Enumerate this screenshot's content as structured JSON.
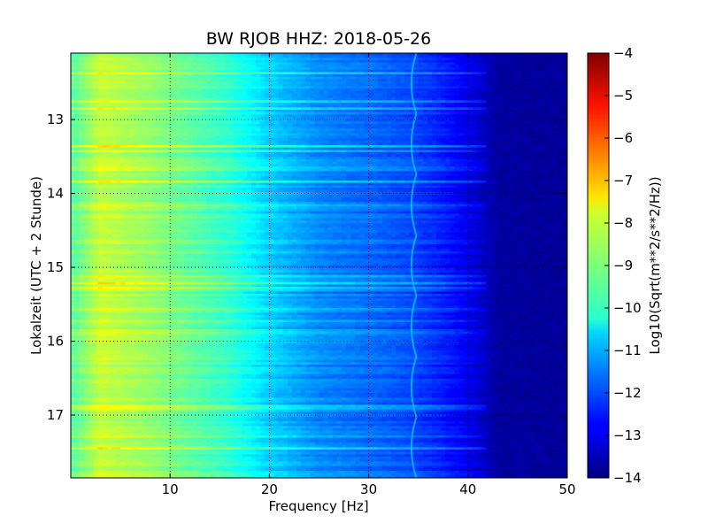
{
  "chart_data": {
    "type": "heatmap",
    "title": "BW RJOB HHZ: 2018-05-26",
    "xlabel": "Frequency [Hz]",
    "ylabel": "Lokalzeit (UTC + 2 Stunde)",
    "xlim": [
      0,
      50
    ],
    "ylim": [
      12.1,
      17.85
    ],
    "x_ticks": [
      {
        "value": 10,
        "label": "10"
      },
      {
        "value": 20,
        "label": "20"
      },
      {
        "value": 30,
        "label": "30"
      },
      {
        "value": 40,
        "label": "40"
      },
      {
        "value": 50,
        "label": "50"
      }
    ],
    "y_ticks": [
      {
        "value": 13,
        "label": "13"
      },
      {
        "value": 14,
        "label": "14"
      },
      {
        "value": 15,
        "label": "15"
      },
      {
        "value": 16,
        "label": "16"
      },
      {
        "value": 17,
        "label": "17"
      }
    ],
    "y_inverted": true,
    "grid": true,
    "colorbar": {
      "label": "Log10(Sqrt(m**2/s**2/Hz))",
      "min": -14,
      "max": -4,
      "colormap": "jet",
      "ticks": [
        {
          "value": -4,
          "label": "−4"
        },
        {
          "value": -5,
          "label": "−5"
        },
        {
          "value": -6,
          "label": "−6"
        },
        {
          "value": -7,
          "label": "−7"
        },
        {
          "value": -8,
          "label": "−8"
        },
        {
          "value": -9,
          "label": "−9"
        },
        {
          "value": -10,
          "label": "−10"
        },
        {
          "value": -11,
          "label": "−11"
        },
        {
          "value": -12,
          "label": "−12"
        },
        {
          "value": -13,
          "label": "−13"
        },
        {
          "value": -14,
          "label": "−14"
        }
      ]
    },
    "frequency_profile": [
      {
        "freq": 0.5,
        "value": -9.3
      },
      {
        "freq": 3,
        "value": -8.3
      },
      {
        "freq": 8,
        "value": -8.8
      },
      {
        "freq": 12,
        "value": -9.3
      },
      {
        "freq": 16,
        "value": -9.8
      },
      {
        "freq": 20,
        "value": -10.7
      },
      {
        "freq": 25,
        "value": -11.4
      },
      {
        "freq": 30,
        "value": -11.7
      },
      {
        "freq": 34,
        "value": -12.0
      },
      {
        "freq": 37,
        "value": -12.4
      },
      {
        "freq": 40,
        "value": -12.9
      },
      {
        "freq": 41.5,
        "value": -13.3
      },
      {
        "freq": 43,
        "value": -13.7
      },
      {
        "freq": 50,
        "value": -13.75
      }
    ],
    "noise_line": {
      "freq_approx": 34.2,
      "value": -10.8
    }
  }
}
